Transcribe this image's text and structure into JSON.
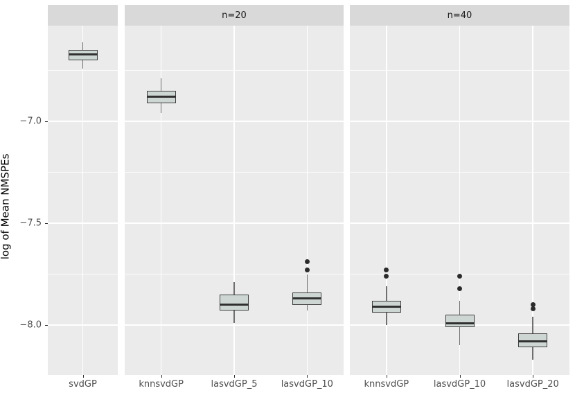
{
  "colors": {
    "panel_bg": "#EBEBEB",
    "strip_bg": "#D9D9D9",
    "grid": "#FFFFFF",
    "box_fill": "#CDD6D2",
    "box_border": "#3D3D3D",
    "median": "#303030",
    "whisker": "#6F6F6F",
    "outlier": "#2B2B2B",
    "axis_text": "#4D4D4D",
    "tick_mark": "#333333"
  },
  "chart_data": {
    "type": "boxplot",
    "title": "",
    "xlabel": "",
    "ylabel": "log of Mean NMSPEs",
    "ylim": [
      -8.245,
      -6.53
    ],
    "grid": "on",
    "yticks": {
      "values": [
        -7.0,
        -7.5,
        -8.0
      ],
      "labels": [
        "−7.0",
        "−7.5",
        "−8.0"
      ]
    },
    "yminor": [
      -6.75,
      -7.25,
      -7.75
    ],
    "panels": [
      {
        "facet_label": "",
        "categories": [
          "svdGP"
        ],
        "boxes": [
          {
            "category": "svdGP",
            "whisker_low": -6.74,
            "q1": -6.7,
            "median": -6.67,
            "q3": -6.65,
            "whisker_high": -6.61,
            "outliers": []
          }
        ]
      },
      {
        "facet_label": "n=20",
        "categories": [
          "knnsvdGP",
          "lasvdGP_5",
          "lasvdGP_10"
        ],
        "boxes": [
          {
            "category": "knnsvdGP",
            "whisker_low": -6.96,
            "q1": -6.91,
            "median": -6.88,
            "q3": -6.85,
            "whisker_high": -6.79,
            "outliers": []
          },
          {
            "category": "lasvdGP_5",
            "whisker_low": -7.99,
            "q1": -7.93,
            "median": -7.9,
            "q3": -7.85,
            "whisker_high": -7.79,
            "outliers": []
          },
          {
            "category": "lasvdGP_10",
            "whisker_low": -7.93,
            "q1": -7.9,
            "median": -7.87,
            "q3": -7.84,
            "whisker_high": -7.75,
            "outliers": [
              -7.69,
              -7.73
            ]
          }
        ]
      },
      {
        "facet_label": "n=40",
        "categories": [
          "knnsvdGP",
          "lasvdGP_10",
          "lasvdGP_20"
        ],
        "boxes": [
          {
            "category": "knnsvdGP",
            "whisker_low": -8.0,
            "q1": -7.94,
            "median": -7.91,
            "q3": -7.88,
            "whisker_high": -7.81,
            "outliers": [
              -7.73,
              -7.76
            ]
          },
          {
            "category": "lasvdGP_10",
            "whisker_low": -8.1,
            "q1": -8.01,
            "median": -7.99,
            "q3": -7.95,
            "whisker_high": -7.88,
            "outliers": [
              -7.76,
              -7.82
            ]
          },
          {
            "category": "lasvdGP_20",
            "whisker_low": -8.17,
            "q1": -8.11,
            "median": -8.08,
            "q3": -8.04,
            "whisker_high": -7.96,
            "outliers": [
              -7.9,
              -7.92
            ]
          }
        ]
      }
    ]
  }
}
